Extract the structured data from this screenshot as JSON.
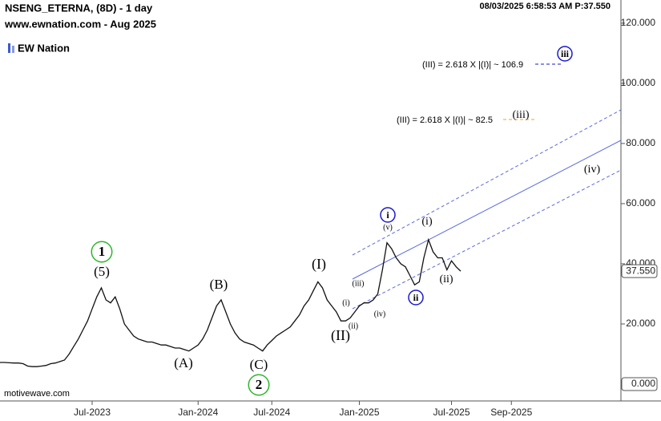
{
  "chart_data": {
    "type": "line",
    "title": "NSENG_ETERNA, (8D) - 1 day",
    "subtitle": "www.ewnation.com  - Aug 2025",
    "timestamp": "08/03/2025 6:58:53 AM  P:37.550",
    "logo": "EW Nation",
    "footer": "motivewave.com",
    "categories": [
      null,
      null,
      null,
      null,
      null,
      null,
      null,
      null,
      null,
      null,
      null,
      null,
      null,
      null,
      null,
      null,
      null,
      null,
      null,
      null,
      "Jul-2023",
      null,
      null,
      null,
      null,
      null,
      null,
      null,
      null,
      null,
      null,
      null,
      null,
      null,
      null,
      null,
      null,
      null,
      null,
      null,
      null,
      null,
      null,
      "Jan-2024",
      null,
      null,
      null,
      null,
      null,
      null,
      null,
      null,
      null,
      null,
      null,
      null,
      null,
      null,
      null,
      "Jul-2024",
      null,
      null,
      null,
      null,
      null,
      null,
      null,
      null,
      null,
      null,
      null,
      null,
      null,
      null,
      null,
      null,
      null,
      null,
      "Jan-2025",
      null,
      null,
      null,
      null,
      null,
      null,
      null,
      null,
      null,
      null,
      null,
      null,
      null,
      null,
      null,
      null,
      null,
      null,
      null,
      "Jul-2025",
      null,
      null,
      null,
      null,
      null,
      null,
      null,
      null,
      null,
      null,
      null,
      null,
      "Sep-2025",
      null,
      null,
      null,
      null,
      null,
      null,
      null,
      null,
      null,
      null,
      null,
      null,
      null,
      null,
      null,
      null,
      null,
      null,
      null,
      null,
      null,
      null,
      null
    ],
    "series": [
      {
        "name": "NSENG_ETERNA",
        "color": "#111111",
        "values": [
          7.2,
          7.2,
          7.1,
          7,
          7,
          6.8,
          6,
          5.8,
          5.8,
          6,
          6.2,
          6.8,
          7,
          7.5,
          8,
          10,
          12.5,
          15,
          18,
          21,
          25,
          29,
          32,
          28,
          27,
          29,
          25,
          20,
          18,
          16,
          15,
          14.5,
          14,
          14,
          13.5,
          13,
          13,
          12.5,
          12,
          12,
          11.5,
          11,
          12,
          13,
          15,
          18,
          22,
          26,
          28,
          24,
          20,
          17,
          15,
          14,
          13.5,
          13,
          12,
          11,
          13,
          14.5,
          16,
          17,
          18,
          19,
          21,
          23,
          26,
          28,
          31,
          34,
          32,
          28,
          26,
          24,
          21,
          21,
          22,
          24,
          26,
          27,
          27,
          28,
          30,
          38,
          47,
          45,
          42,
          40,
          39,
          36,
          33,
          34,
          42,
          48,
          44,
          42,
          42,
          38,
          41,
          39,
          37.55,
          null,
          null,
          null,
          null,
          null,
          null,
          null,
          null,
          null,
          null,
          null,
          null,
          null,
          null,
          null,
          null,
          null,
          null,
          null,
          null,
          null,
          null,
          null,
          null,
          null,
          null,
          null,
          null,
          null,
          null,
          null,
          null,
          null,
          null
        ]
      }
    ],
    "ylim": [
      -5.6,
      127.7
    ],
    "yticks": [
      {
        "value": 0,
        "label": "0.000"
      },
      {
        "value": 20,
        "label": "20.000"
      },
      {
        "value": 40,
        "label": "40.000"
      },
      {
        "value": 60,
        "label": "60.000"
      },
      {
        "value": 80,
        "label": "80.000"
      },
      {
        "value": 100,
        "label": "100.000"
      },
      {
        "value": 120,
        "label": "120.000"
      }
    ],
    "last_price": {
      "value": 37.55,
      "label": "37.550"
    },
    "annotations": [
      {
        "text": "1",
        "color": "#2db52d",
        "circled": true
      },
      {
        "text": "(5)",
        "color": "#000000"
      },
      {
        "text": "(A)",
        "color": "#6b1a1a"
      },
      {
        "text": "(B)",
        "color": "#6b1a1a"
      },
      {
        "text": "(C)",
        "color": "#6b1a1a"
      },
      {
        "text": "2",
        "color": "#2db52d",
        "circled": true
      },
      {
        "text": "(I)",
        "color": "#e020c8"
      },
      {
        "text": "(II)",
        "color": "#e020c8"
      },
      {
        "text": "(i)",
        "color": "#333333"
      },
      {
        "text": "(ii)",
        "color": "#333333"
      },
      {
        "text": "(iii)",
        "color": "#333333"
      },
      {
        "text": "(iv)",
        "color": "#333333"
      },
      {
        "text": "(v)",
        "color": "#333333"
      },
      {
        "text": "i",
        "color": "#1a1ad0",
        "circled": true
      },
      {
        "text": "ii",
        "color": "#1a1ad0",
        "circled": true
      },
      {
        "text": "(i)",
        "color": "#f0a030"
      },
      {
        "text": "(ii)",
        "color": "#f0a030"
      },
      {
        "text": "(iii)",
        "color": "#f0a030"
      },
      {
        "text": "(iv)",
        "color": "#f0a030"
      },
      {
        "text": "iii",
        "color": "#1a1ad0",
        "circled": true
      },
      {
        "text": "(III) = 2.618 X |(I)| ~ 106.9",
        "color": "#1a1ad0"
      },
      {
        "text": "(III) = 2.618 X |(I)| ~ 82.5",
        "color": "#f0a030"
      }
    ]
  }
}
